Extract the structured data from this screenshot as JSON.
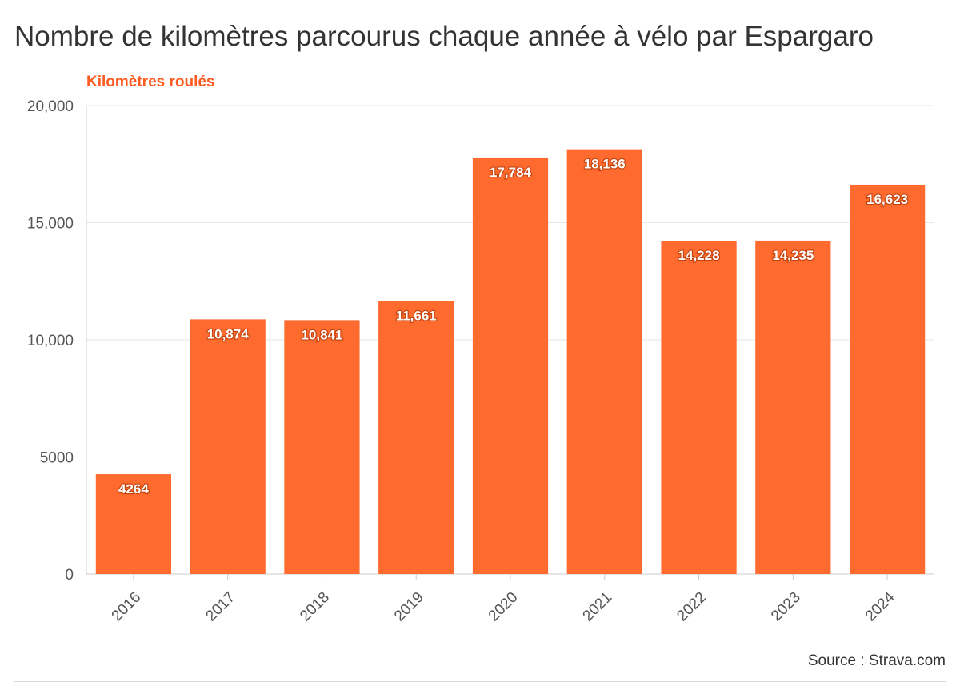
{
  "title": "Nombre de kilomètres parcourus chaque année à vélo par Espargaro",
  "source": "Source : Strava.com",
  "colors": {
    "bar": "#ff6a2f",
    "ylabel": "#ff5a1f",
    "grid": "#e6e6e6",
    "axis": "#cccccc"
  },
  "chart_data": {
    "type": "bar",
    "title": "Nombre de kilomètres parcourus chaque année à vélo par Espargaro",
    "xlabel": "",
    "ylabel": "Kilomètres roulés",
    "categories": [
      "2016",
      "2017",
      "2018",
      "2019",
      "2020",
      "2021",
      "2022",
      "2023",
      "2024"
    ],
    "values": [
      4264,
      10874,
      10841,
      11661,
      17784,
      18136,
      14228,
      14235,
      16623
    ],
    "value_labels": [
      "4264",
      "10,874",
      "10,841",
      "11,661",
      "17,784",
      "18,136",
      "14,228",
      "14,235",
      "16,623"
    ],
    "ylim": [
      0,
      20000
    ],
    "yticks": [
      0,
      5000,
      10000,
      15000,
      20000
    ],
    "ytick_labels": [
      "0",
      "5000",
      "10,000",
      "15,000",
      "20,000"
    ],
    "grid": true,
    "legend": "none"
  }
}
